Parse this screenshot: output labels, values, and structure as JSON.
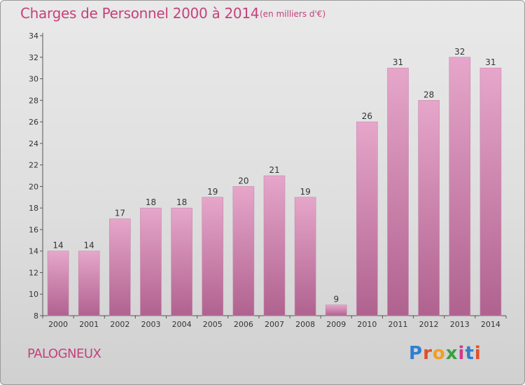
{
  "header": {
    "title": "Charges de Personnel 2000 à 2014",
    "subtitle": "(en milliers d'€)"
  },
  "footer": {
    "commune": "PALOGNEUX",
    "logo_letters": [
      "P",
      "r",
      "o",
      "x",
      "i",
      "t",
      "i"
    ],
    "logo_colors": [
      "#2f7fd0",
      "#e0502a",
      "#f0a020",
      "#3aa043",
      "#d03a8c",
      "#2f7fd0",
      "#e0502a"
    ]
  },
  "colors": {
    "bar_top": "#e6a6ca",
    "bar_bottom": "#b0628f",
    "title": "#c5417c"
  },
  "chart_data": {
    "type": "bar",
    "title": "Charges de Personnel 2000 à 2014",
    "subtitle": "(en milliers d'€)",
    "xlabel": "",
    "ylabel": "",
    "categories": [
      "2000",
      "2001",
      "2002",
      "2003",
      "2004",
      "2005",
      "2006",
      "2007",
      "2008",
      "2009",
      "2010",
      "2011",
      "2012",
      "2013",
      "2014"
    ],
    "values": [
      14,
      14,
      17,
      18,
      18,
      19,
      20,
      21,
      19,
      9,
      26,
      31,
      28,
      32,
      31
    ],
    "ylim": [
      8,
      34
    ],
    "yticks": [
      8,
      10,
      12,
      14,
      16,
      18,
      20,
      22,
      24,
      26,
      28,
      30,
      32,
      34
    ],
    "grid": false,
    "legend": "none"
  }
}
